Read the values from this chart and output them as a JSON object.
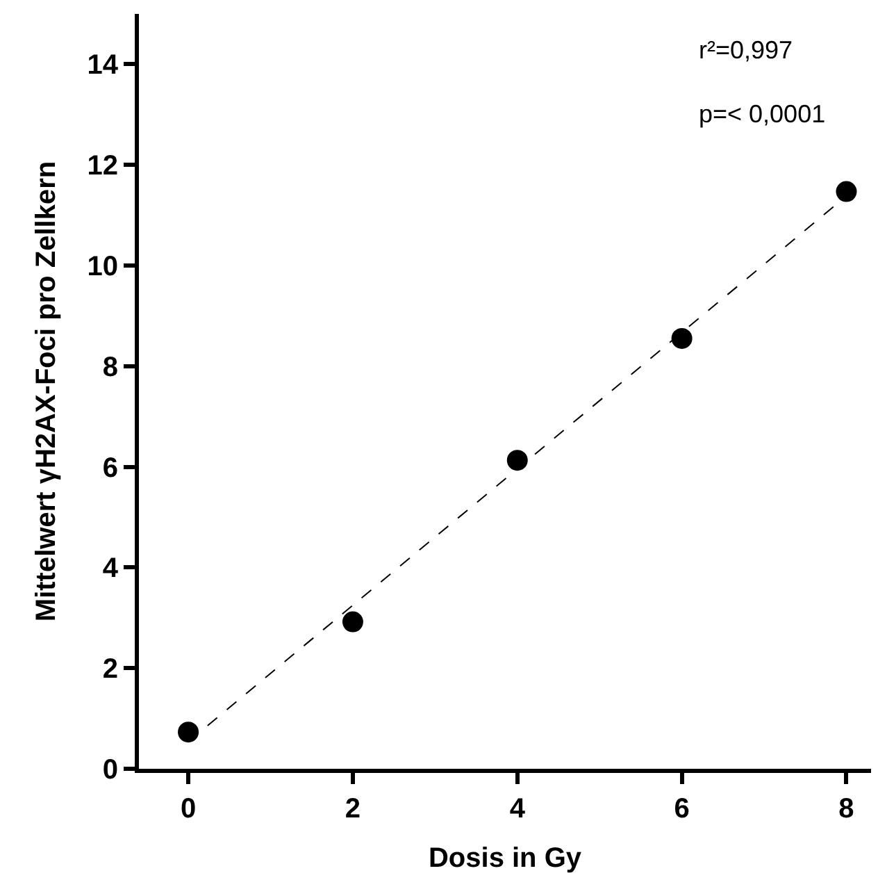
{
  "chart_data": {
    "type": "scatter",
    "xlabel": "Dosis in Gy",
    "ylabel": "Mittelwert γH2AX-Foci pro Zellkern",
    "x": [
      0,
      2,
      4,
      6,
      8
    ],
    "series": [
      {
        "color": "#000000",
        "values": [
          0.73,
          2.92,
          6.13,
          8.55,
          11.47
        ],
        "marker": "circle"
      },
      {
        "type": "line",
        "color": "#000000",
        "x": [
          0,
          8
        ],
        "values": [
          0.54,
          11.38
        ],
        "line_style": "dashed",
        "marker": "none"
      }
    ],
    "xlim": [
      -0.6,
      8.3
    ],
    "xticks": [
      0,
      2,
      4,
      6,
      8
    ],
    "ylim": [
      0,
      15
    ],
    "yticks": [
      0,
      2,
      4,
      6,
      8,
      10,
      12,
      14
    ],
    "grid": false,
    "annotations": [
      "r²=0,997",
      "p=< 0,0001"
    ]
  }
}
